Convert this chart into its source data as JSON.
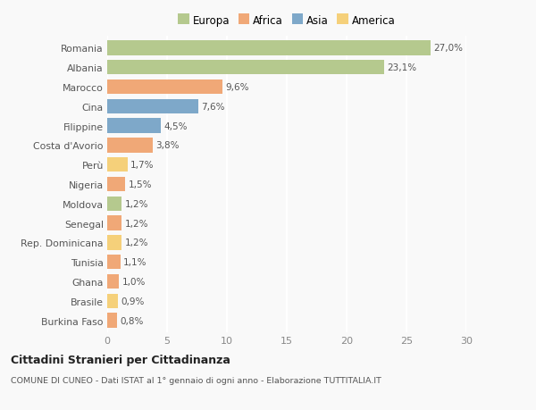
{
  "categories": [
    "Romania",
    "Albania",
    "Marocco",
    "Cina",
    "Filippine",
    "Costa d'Avorio",
    "Perù",
    "Nigeria",
    "Moldova",
    "Senegal",
    "Rep. Dominicana",
    "Tunisia",
    "Ghana",
    "Brasile",
    "Burkina Faso"
  ],
  "values": [
    27.0,
    23.1,
    9.6,
    7.6,
    4.5,
    3.8,
    1.7,
    1.5,
    1.2,
    1.2,
    1.2,
    1.1,
    1.0,
    0.9,
    0.8
  ],
  "labels": [
    "27,0%",
    "23,1%",
    "9,6%",
    "7,6%",
    "4,5%",
    "3,8%",
    "1,7%",
    "1,5%",
    "1,2%",
    "1,2%",
    "1,2%",
    "1,1%",
    "1,0%",
    "0,9%",
    "0,8%"
  ],
  "colors": [
    "#b5c98e",
    "#b5c98e",
    "#f0a877",
    "#7ea8c9",
    "#7ea8c9",
    "#f0a877",
    "#f5d07a",
    "#f0a877",
    "#b5c98e",
    "#f0a877",
    "#f5d07a",
    "#f0a877",
    "#f0a877",
    "#f5d07a",
    "#f0a877"
  ],
  "legend_labels": [
    "Europa",
    "Africa",
    "Asia",
    "America"
  ],
  "legend_colors": [
    "#b5c98e",
    "#f0a877",
    "#7ea8c9",
    "#f5d07a"
  ],
  "xlim": [
    0,
    30
  ],
  "xticks": [
    0,
    5,
    10,
    15,
    20,
    25,
    30
  ],
  "title": "Cittadini Stranieri per Cittadinanza",
  "subtitle": "COMUNE DI CUNEO - Dati ISTAT al 1° gennaio di ogni anno - Elaborazione TUTTITALIA.IT",
  "bg_color": "#f9f9f9",
  "grid_color": "#ffffff",
  "bar_height": 0.75
}
